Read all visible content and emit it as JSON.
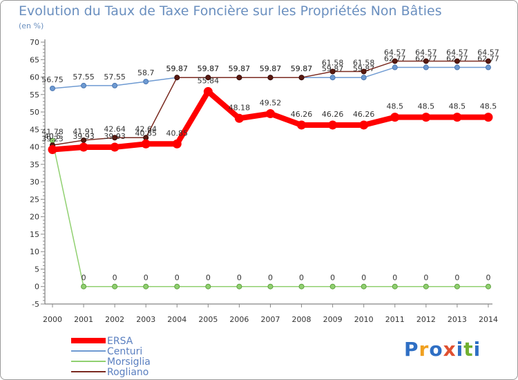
{
  "header": {
    "title": "Evolution du Taux de Taxe Foncière sur les Propriétés Non Bâties",
    "subtitle": "(en %)"
  },
  "logo": {
    "text": "Proxiti",
    "letters": [
      "P",
      "r",
      "o",
      "x",
      "i",
      "t",
      "i"
    ],
    "colors": [
      "#2f6fc4",
      "#f0a020",
      "#2f6fc4",
      "#e05030",
      "#2f6fc4",
      "#70b030",
      "#2f6fc4"
    ]
  },
  "chart_data": {
    "type": "line",
    "x": [
      "2000",
      "2001",
      "2002",
      "2003",
      "2004",
      "2005",
      "2006",
      "2007",
      "2008",
      "2009",
      "2010",
      "2011",
      "2012",
      "2013",
      "2014"
    ],
    "ylim": [
      -5,
      70
    ],
    "yticks": [
      -5,
      0,
      5,
      10,
      15,
      20,
      25,
      30,
      35,
      40,
      45,
      50,
      55,
      60,
      65,
      70
    ],
    "grid": false,
    "legend_position": "bottom-left",
    "series": [
      {
        "name": "ERSA",
        "color": "#ff0000",
        "values": [
          39.23,
          39.93,
          39.93,
          40.85,
          40.85,
          55.84,
          48.18,
          49.52,
          46.26,
          46.26,
          46.26,
          48.5,
          48.5,
          48.5,
          48.5
        ],
        "labels": [
          "39.23",
          "39.93",
          "39.93",
          "40.85",
          "40.85",
          "55.84",
          "48.18",
          "49.52",
          "46.26",
          "46.26",
          "46.26",
          "48.5",
          "48.5",
          "48.5",
          "48.5"
        ]
      },
      {
        "name": "Centuri",
        "color": "#6e9ad2",
        "values": [
          56.75,
          57.55,
          57.55,
          58.7,
          59.87,
          59.87,
          59.87,
          59.87,
          59.87,
          59.87,
          59.87,
          62.77,
          62.77,
          62.77,
          62.77
        ],
        "labels": [
          "56.75",
          "57.55",
          "57.55",
          "58.7",
          "59.87",
          "59.87",
          "59.87",
          "59.87",
          "59.87",
          "59.87",
          "59.87",
          "62.77",
          "62.77",
          "62.77",
          "62.77"
        ]
      },
      {
        "name": "Morsiglia",
        "color": "#90d070",
        "values": [
          41.78,
          0,
          0,
          0,
          0,
          0,
          0,
          0,
          0,
          0,
          0,
          0,
          0,
          0,
          0
        ],
        "labels": [
          "41.78",
          "0",
          "0",
          "0",
          "0",
          "0",
          "0",
          "0",
          "0",
          "0",
          "0",
          "0",
          "0",
          "0",
          "0"
        ]
      },
      {
        "name": "Rogliano",
        "color": "#7a2a20",
        "values": [
          40.5,
          41.91,
          42.64,
          42.64,
          59.87,
          59.87,
          59.87,
          59.87,
          59.87,
          61.58,
          61.58,
          64.57,
          64.57,
          64.57,
          64.57
        ],
        "labels": [
          "40.5",
          "41.91",
          "42.64",
          "42.64",
          "59.87",
          "59.87",
          "59.87",
          "59.87",
          "59.87",
          "61.58",
          "61.58",
          "64.57",
          "64.57",
          "64.57",
          "64.57"
        ]
      }
    ]
  }
}
